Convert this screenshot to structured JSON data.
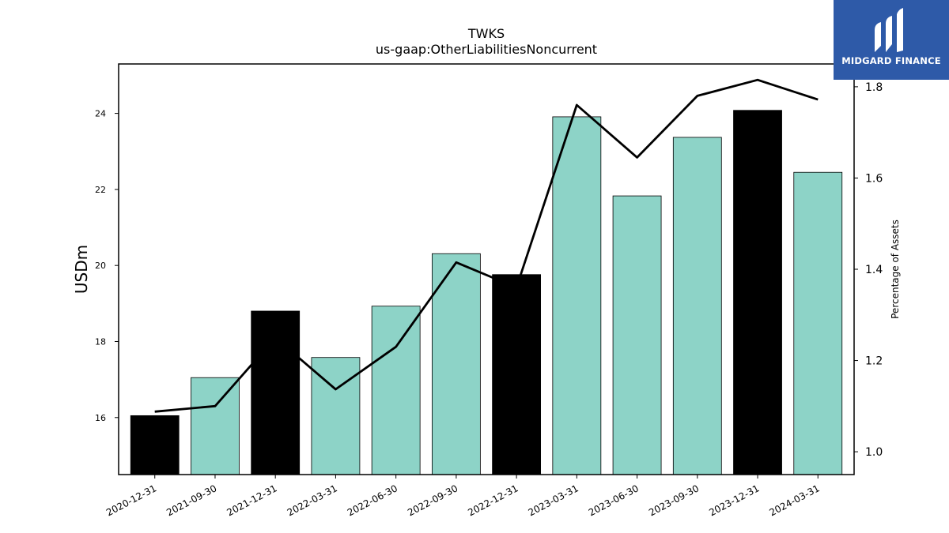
{
  "chart_data": {
    "type": "bar",
    "title": "TWKS",
    "subtitle": "us-gaap:OtherLiabilitiesNoncurrent",
    "ylabel": "USDm",
    "y2label": "Percentage of Assets",
    "categories": [
      "2020-12-31",
      "2021-09-30",
      "2021-12-31",
      "2022-03-31",
      "2022-06-30",
      "2022-09-30",
      "2022-12-31",
      "2023-03-31",
      "2023-06-30",
      "2023-09-30",
      "2023-12-31",
      "2024-03-31"
    ],
    "values": [
      16.05,
      17.05,
      18.8,
      17.58,
      18.93,
      20.31,
      19.76,
      23.91,
      21.83,
      23.37,
      24.08,
      22.45
    ],
    "bar_highlight": [
      true,
      false,
      true,
      false,
      false,
      false,
      true,
      false,
      false,
      false,
      true,
      false
    ],
    "line_values": [
      1.088,
      1.1,
      1.25,
      1.137,
      1.23,
      1.415,
      1.36,
      1.76,
      1.645,
      1.78,
      1.815,
      1.772
    ],
    "ylim": [
      14.5,
      25.3
    ],
    "y2lim": [
      0.95,
      1.85
    ],
    "yticks": [
      16,
      18,
      20,
      22,
      24
    ],
    "y2ticks": [
      1.0,
      1.2,
      1.4,
      1.6,
      1.8
    ],
    "colors": {
      "bar": "#8dd3c7",
      "bar_highlight": "#000000",
      "line": "#000000"
    },
    "grid": false
  },
  "logo": {
    "text": "MIDGARD FINANCE",
    "icon": "midgard-logo-icon",
    "color": "#2e5aa8"
  }
}
